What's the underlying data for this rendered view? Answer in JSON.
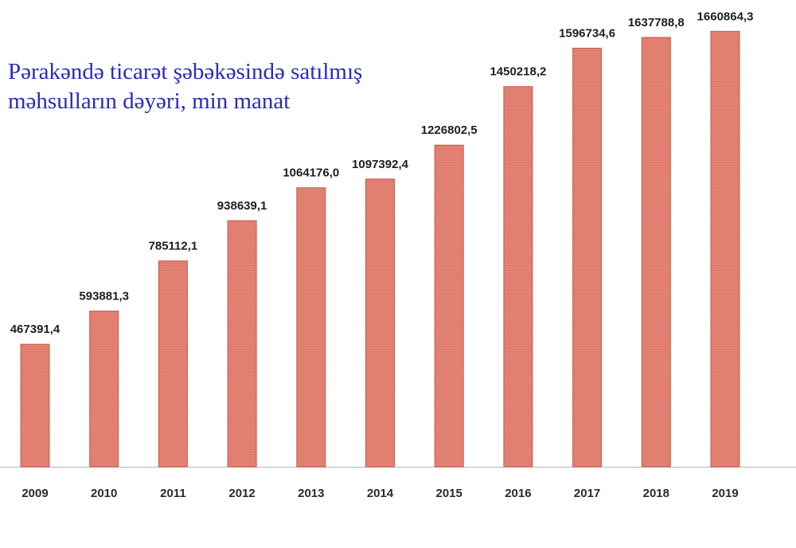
{
  "colors": {
    "title": "#2a2ac0",
    "bar_fill": "#e38375",
    "bar_edge": "#c9584a",
    "baseline": "#b8b8b8"
  },
  "chart_data": {
    "type": "bar",
    "title": "Pərakəndə ticarət şəbəkəsində satılmış məhsulların dəyəri, min manat",
    "xlabel": "",
    "ylabel": "",
    "categories": [
      "2009",
      "2010",
      "2011",
      "2012",
      "2013",
      "2014",
      "2015",
      "2016",
      "2017",
      "2018",
      "2019"
    ],
    "values": [
      467391.4,
      593881.3,
      785112.1,
      938639.1,
      1064176.0,
      1097392.4,
      1226802.5,
      1450218.2,
      1596734.6,
      1637788.8,
      1660864.3
    ],
    "data_labels": [
      "467391,4",
      "593881,3",
      "785112,1",
      "938639,1",
      "1064176,0",
      "1097392,4",
      "1226802,5",
      "1450218,2",
      "1596734,6",
      "1637788,8",
      "1660864,3"
    ],
    "ylim": [
      0,
      1750000
    ],
    "grid": false,
    "legend": "none"
  }
}
